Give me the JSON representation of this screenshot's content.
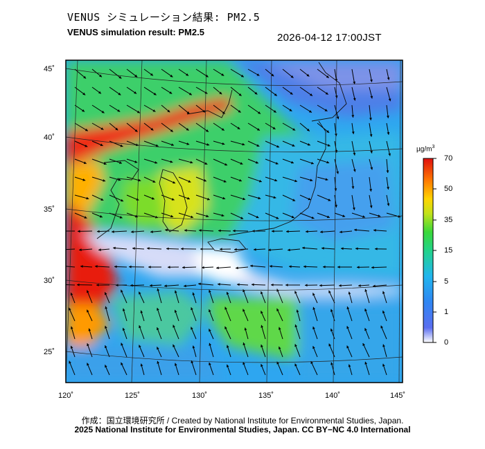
{
  "header": {
    "title_jp": "VENUS シミュレーション結果: PM2.5",
    "title_en": "VENUS simulation result: PM2.5",
    "timestamp": "2026-04-12 17:00JST"
  },
  "colorbar": {
    "unit": "µg/m",
    "unit_sup": "3",
    "ticks": [
      {
        "label": "70",
        "value": 70
      },
      {
        "label": "50",
        "value": 50
      },
      {
        "label": "35",
        "value": 35
      },
      {
        "label": "15",
        "value": 15
      },
      {
        "label": "5",
        "value": 5
      },
      {
        "label": "1",
        "value": 1
      },
      {
        "label": "0",
        "value": 0
      }
    ],
    "colors": [
      "#ffffff",
      "#3d6cf0",
      "#20b4f0",
      "#25d86b",
      "#b6e21c",
      "#ffe100",
      "#ff8a00",
      "#ef1f0f",
      "#cc1010"
    ]
  },
  "map": {
    "lon_labels": [
      "120˚",
      "125˚",
      "130˚",
      "135˚",
      "140˚",
      "145˚"
    ],
    "lat_labels": [
      "45˚",
      "40˚",
      "35˚",
      "30˚",
      "25˚"
    ],
    "lon_range": [
      120,
      145
    ],
    "lat_range": [
      23,
      46
    ],
    "wind_field": "north-westerly to westerly arrows over sea, southerly arrows in south"
  },
  "footer": {
    "credit_line1": "作成：国立環境研究所 / Created by National Institute for Environmental Studies, Japan.",
    "credit_line2": "2025 National Institute for Environmental Studies, Japan. CC BY−NC 4.0 International"
  }
}
